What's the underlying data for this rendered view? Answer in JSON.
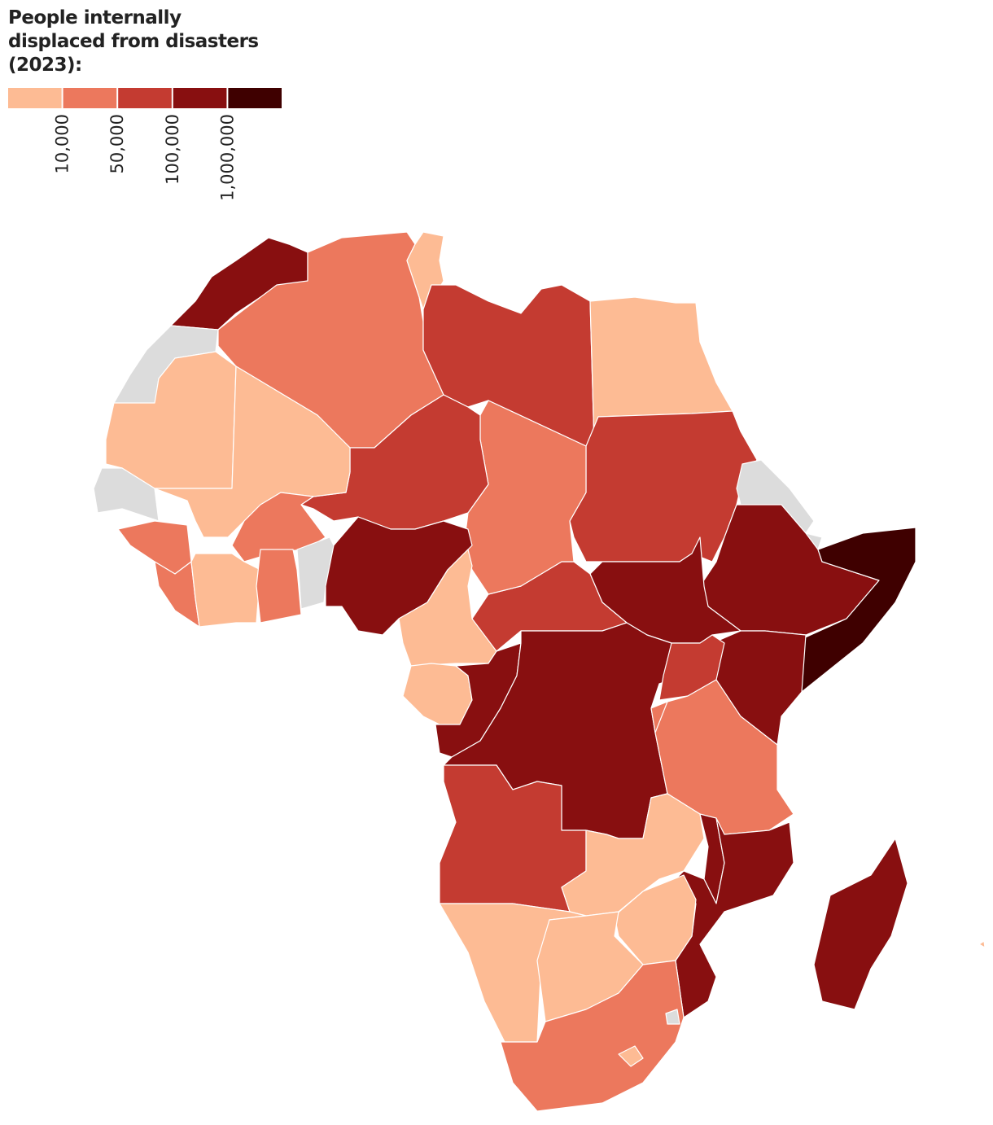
{
  "title": "People internally displaced from disasters (2023):",
  "legend": {
    "colors": [
      "#fdbb94",
      "#ec785d",
      "#c43b31",
      "#880f10",
      "#3f0000"
    ],
    "breaks": [
      {
        "value": 10000,
        "label": "10,000"
      },
      {
        "value": 50000,
        "label": "50,000"
      },
      {
        "value": 100000,
        "label": "100,000"
      },
      {
        "value": 1000000,
        "label": "1,000,000"
      }
    ]
  }
}
